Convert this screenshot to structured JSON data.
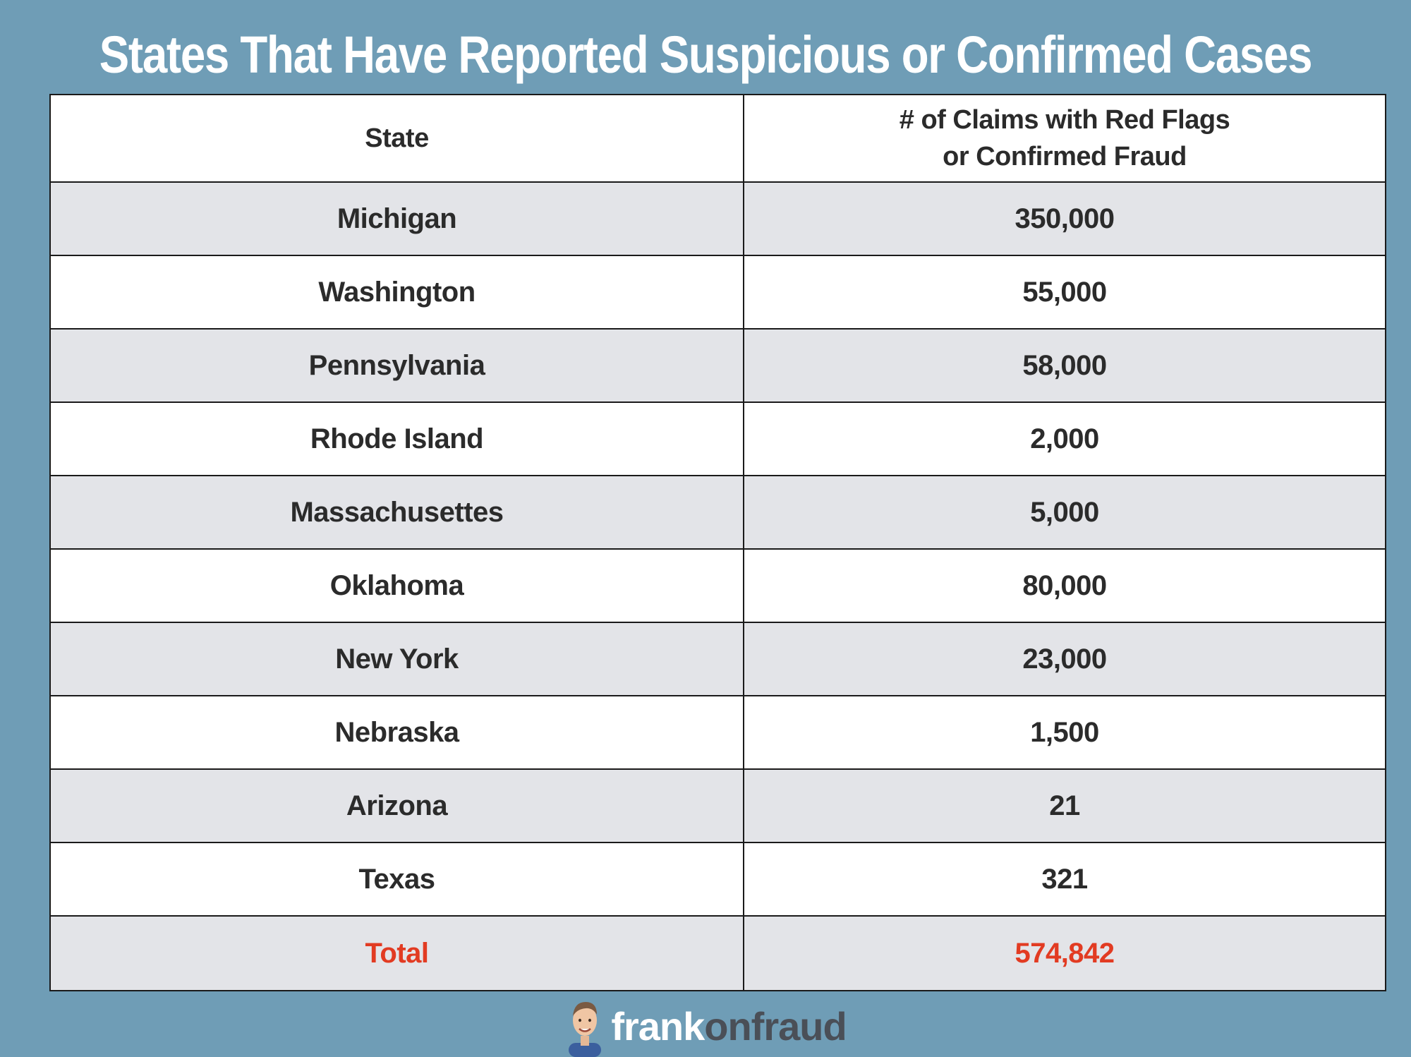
{
  "title": "States That Have Reported Suspicious or Confirmed Cases",
  "table": {
    "headers": {
      "state": "State",
      "claims_line1": "# of Claims with Red Flags",
      "claims_line2": "or Confirmed Fraud"
    },
    "rows": [
      {
        "state": "Michigan",
        "claims": "350,000"
      },
      {
        "state": "Washington",
        "claims": "55,000"
      },
      {
        "state": "Pennsylvania",
        "claims": "58,000"
      },
      {
        "state": "Rhode Island",
        "claims": "2,000"
      },
      {
        "state": "Massachusettes",
        "claims": "5,000"
      },
      {
        "state": "Oklahoma",
        "claims": "80,000"
      },
      {
        "state": "New York",
        "claims": "23,000"
      },
      {
        "state": "Nebraska",
        "claims": "1,500"
      },
      {
        "state": "Arizona",
        "claims": "21"
      },
      {
        "state": "Texas",
        "claims": "321"
      }
    ],
    "total": {
      "label": "Total",
      "claims": "574,842"
    }
  },
  "footer": {
    "brand_first": "frank",
    "brand_second": "onfraud",
    "avatar_icon": "person-avatar-icon"
  },
  "colors": {
    "background": "#6f9db6",
    "shaded_row": "#e3e4e8",
    "total_text": "#e23b22"
  }
}
